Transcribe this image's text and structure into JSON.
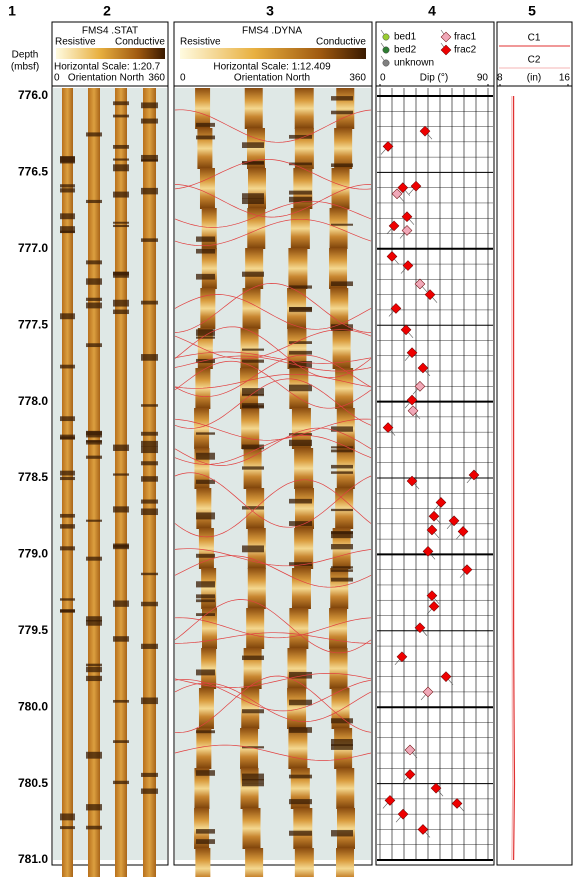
{
  "column_numbers": [
    "1",
    "2",
    "3",
    "4",
    "5"
  ],
  "depth_header": [
    "Depth",
    "(mbsf)"
  ],
  "stat_header": {
    "title": "FMS4 .STAT",
    "left": "Resistive",
    "right": "Conductive",
    "scale": "Horizontal Scale: 1:20.7",
    "orientation": [
      "0",
      "Orientation North",
      "360"
    ]
  },
  "dyna_header": {
    "title": "FMS4 .DYNA",
    "left": "Resistive",
    "right": "Conductive",
    "scale": "Horizontal Scale:  1:12.409",
    "orientation": [
      "0",
      "Orientation North",
      "360"
    ]
  },
  "chart_data": [
    {
      "type": "scatter",
      "xlabel": "Dip (°)",
      "xlim": [
        0,
        90
      ],
      "xticks": [
        0,
        90
      ],
      "ylim": [
        776.0,
        781.0
      ],
      "yticks": [
        {
          "value": 776.0,
          "label": "776.0"
        },
        {
          "value": 776.5,
          "label": "776.5"
        },
        {
          "value": 777.0,
          "label": "777.0"
        },
        {
          "value": 777.5,
          "label": "777.5"
        },
        {
          "value": 778.0,
          "label": "778.0"
        },
        {
          "value": 778.5,
          "label": "778.5"
        },
        {
          "value": 779.0,
          "label": "779.0"
        },
        {
          "value": 779.5,
          "label": "779.5"
        },
        {
          "value": 780.0,
          "label": "780.0"
        },
        {
          "value": 780.5,
          "label": "780.5"
        },
        {
          "value": 781.0,
          "label": "781.0"
        }
      ],
      "grid": true,
      "series": [
        {
          "name": "bed1",
          "color": "#9acd32",
          "marker": "circle",
          "x": [],
          "values": []
        },
        {
          "name": "bed2",
          "color": "#2e7d32",
          "marker": "circle",
          "x": [],
          "values": []
        },
        {
          "name": "unknown",
          "color": "#808080",
          "marker": "circle",
          "x": [],
          "values": []
        },
        {
          "name": "frac1",
          "color": "#f0a8b8",
          "marker": "diamond",
          "x": [
            14.2,
            22.5,
            33.3,
            33.3,
            27.5,
            40,
            25
          ],
          "values": [
            776.64,
            776.88,
            777.23,
            777.9,
            778.06,
            779.9,
            780.28
          ]
        },
        {
          "name": "frac2",
          "color": "#ee0000",
          "marker": "diamond",
          "x": [
            37.5,
            6.7,
            19,
            30,
            22.5,
            11.7,
            10,
            23.3,
            41.7,
            13.3,
            21.7,
            26.7,
            35.8,
            26.7,
            6.7,
            78.3,
            26.7,
            50.8,
            45,
            61.7,
            43.3,
            69.2,
            40,
            72.5,
            43.3,
            45,
            33.3,
            18.3,
            55,
            25,
            46.7,
            8.3,
            64.2,
            19.2,
            35.8
          ],
          "values": [
            776.23,
            776.33,
            776.6,
            776.59,
            776.79,
            776.85,
            777.05,
            777.11,
            777.3,
            777.39,
            777.53,
            777.68,
            777.78,
            777.99,
            778.17,
            778.48,
            778.52,
            778.66,
            778.75,
            778.78,
            778.84,
            778.85,
            778.98,
            779.1,
            779.27,
            779.34,
            779.48,
            779.67,
            779.8,
            780.44,
            780.53,
            780.61,
            780.63,
            780.7,
            780.8
          ]
        }
      ]
    },
    {
      "type": "line",
      "xlabel": "(in)",
      "xlim": [
        8,
        16
      ],
      "xticks": [
        8,
        16
      ],
      "ylim": [
        776.0,
        781.0
      ],
      "y": [
        776.0,
        776.5,
        777.0,
        777.5,
        778.0,
        778.5,
        779.0,
        779.5,
        780.0,
        780.5,
        781.0
      ],
      "series": [
        {
          "name": "C1",
          "color": "#e03030",
          "values": [
            9.6,
            9.6,
            9.6,
            9.6,
            9.6,
            9.6,
            9.6,
            9.6,
            9.65,
            9.7,
            9.6
          ]
        },
        {
          "name": "C2",
          "color": "#f4b4b4",
          "values": [
            9.4,
            9.4,
            9.4,
            9.4,
            9.4,
            9.4,
            9.4,
            9.45,
            9.45,
            9.5,
            9.4
          ]
        }
      ]
    }
  ]
}
